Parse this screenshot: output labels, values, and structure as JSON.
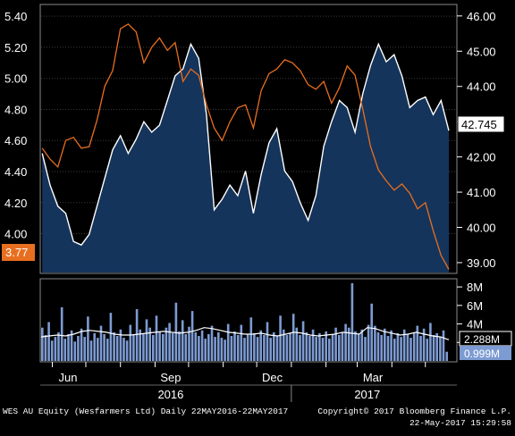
{
  "chart_data": [
    {
      "type": "line",
      "title": "",
      "x_start": "2016-05-22",
      "x_end": "2017-05-22",
      "ylim_left": [
        3.75,
        5.47
      ],
      "ylim_right": [
        38.72,
        46.3
      ],
      "left_ticks": [
        "5.40",
        "5.20",
        "5.00",
        "4.80",
        "4.60",
        "4.40",
        "4.20",
        "4.00"
      ],
      "right_ticks": [
        "46.00",
        "45.00",
        "44.00",
        "43.00",
        "42.00",
        "41.00",
        "40.00",
        "39.00"
      ],
      "series": [
        {
          "axis": "right",
          "color": "#ffffff",
          "fill": "#163760",
          "last_value": "42.745",
          "x": [
            "2016-05-23",
            "2016-05-30",
            "2016-06-06",
            "2016-06-13",
            "2016-06-20",
            "2016-06-27",
            "2016-07-04",
            "2016-07-11",
            "2016-07-18",
            "2016-07-25",
            "2016-08-01",
            "2016-08-08",
            "2016-08-15",
            "2016-08-22",
            "2016-08-29",
            "2016-09-05",
            "2016-09-12",
            "2016-09-19",
            "2016-09-26",
            "2016-10-03",
            "2016-10-10",
            "2016-10-17",
            "2016-10-24",
            "2016-10-31",
            "2016-11-07",
            "2016-11-14",
            "2016-11-21",
            "2016-11-28",
            "2016-12-05",
            "2016-12-12",
            "2016-12-19",
            "2016-12-26",
            "2017-01-02",
            "2017-01-09",
            "2017-01-16",
            "2017-01-23",
            "2017-01-30",
            "2017-02-06",
            "2017-02-13",
            "2017-02-20",
            "2017-02-27",
            "2017-03-06",
            "2017-03-13",
            "2017-03-20",
            "2017-03-27",
            "2017-04-03",
            "2017-04-10",
            "2017-04-17",
            "2017-04-24",
            "2017-05-01",
            "2017-05-08",
            "2017-05-15",
            "2017-05-22"
          ],
          "values": [
            42.1,
            41.2,
            40.6,
            40.4,
            39.6,
            39.5,
            39.8,
            40.6,
            41.4,
            42.2,
            42.6,
            42.1,
            42.5,
            43.0,
            42.7,
            42.9,
            43.6,
            44.3,
            44.5,
            45.2,
            44.8,
            43.2,
            40.5,
            40.8,
            41.2,
            40.9,
            41.6,
            40.4,
            41.5,
            42.4,
            42.8,
            41.6,
            41.3,
            40.7,
            40.2,
            40.9,
            42.3,
            43.0,
            43.6,
            43.4,
            42.7,
            43.8,
            44.6,
            45.2,
            44.7,
            44.9,
            44.3,
            43.4,
            43.6,
            43.7,
            43.2,
            43.6,
            42.745
          ]
        },
        {
          "axis": "left",
          "color": "#e86f1f",
          "last_value": "3.77",
          "x": [
            "2016-05-23",
            "2016-05-30",
            "2016-06-06",
            "2016-06-13",
            "2016-06-20",
            "2016-06-27",
            "2016-07-04",
            "2016-07-11",
            "2016-07-18",
            "2016-07-25",
            "2016-08-01",
            "2016-08-08",
            "2016-08-15",
            "2016-08-22",
            "2016-08-29",
            "2016-09-05",
            "2016-09-12",
            "2016-09-19",
            "2016-09-26",
            "2016-10-03",
            "2016-10-10",
            "2016-10-17",
            "2016-10-24",
            "2016-10-31",
            "2016-11-07",
            "2016-11-14",
            "2016-11-21",
            "2016-11-28",
            "2016-12-05",
            "2016-12-12",
            "2016-12-19",
            "2016-12-26",
            "2017-01-02",
            "2017-01-09",
            "2017-01-16",
            "2017-01-23",
            "2017-01-30",
            "2017-02-06",
            "2017-02-13",
            "2017-02-20",
            "2017-02-27",
            "2017-03-06",
            "2017-03-13",
            "2017-03-20",
            "2017-03-27",
            "2017-04-03",
            "2017-04-10",
            "2017-04-17",
            "2017-04-24",
            "2017-05-01",
            "2017-05-08",
            "2017-05-15",
            "2017-05-22"
          ],
          "values": [
            4.55,
            4.48,
            4.43,
            4.6,
            4.62,
            4.55,
            4.56,
            4.73,
            4.95,
            5.05,
            5.32,
            5.35,
            5.3,
            5.1,
            5.2,
            5.26,
            5.18,
            5.23,
            4.98,
            5.06,
            5.02,
            4.83,
            4.68,
            4.6,
            4.72,
            4.81,
            4.83,
            4.68,
            4.92,
            5.03,
            5.06,
            5.12,
            5.1,
            5.05,
            4.96,
            4.93,
            4.98,
            4.84,
            4.94,
            5.08,
            5.02,
            4.8,
            4.56,
            4.41,
            4.34,
            4.28,
            4.32,
            4.26,
            4.16,
            4.2,
            4.02,
            3.86,
            3.77
          ]
        }
      ]
    },
    {
      "type": "bar",
      "title": "",
      "ylim": [
        0,
        8.4
      ],
      "ticks": [
        "8M",
        "6M",
        "4M",
        "2M"
      ],
      "ma_value": "2.288M",
      "last_value": "0.999M",
      "bar_color": "#7d9bd3",
      "ma_color": "#ffffff",
      "values": [
        3.6,
        2.8,
        4.2,
        2.2,
        2.6,
        3.1,
        5.8,
        2.4,
        2.9,
        3.3,
        2.1,
        2.7,
        3.5,
        2.6,
        4.8,
        2.2,
        3.0,
        2.5,
        3.8,
        2.9,
        2.4,
        5.2,
        3.1,
        2.7,
        3.4,
        2.5,
        2.2,
        3.9,
        2.8,
        5.6,
        3.4,
        2.9,
        4.5,
        3.6,
        2.8,
        4.9,
        3.2,
        2.9,
        3.6,
        4.1,
        3.0,
        6.3,
        3.2,
        4.4,
        2.9,
        3.7,
        5.4,
        3.1,
        2.7,
        3.3,
        2.4,
        2.9,
        3.8,
        2.6,
        3.1,
        2.5,
        2.3,
        4.0,
        2.7,
        3.2,
        2.8,
        3.9,
        2.5,
        2.9,
        4.7,
        3.0,
        2.6,
        3.3,
        2.8,
        4.2,
        2.5,
        3.1,
        2.7,
        4.9,
        3.4,
        2.8,
        3.0,
        5.1,
        3.6,
        2.8,
        4.3,
        3.1,
        2.7,
        3.4,
        2.6,
        3.0,
        2.5,
        3.2,
        2.4,
        2.9,
        3.6,
        2.8,
        3.1,
        4.0,
        3.6,
        8.4,
        3.2,
        2.9,
        3.4,
        2.6,
        3.9,
        6.2,
        3.8,
        3.1,
        2.8,
        3.5,
        2.7,
        3.3,
        2.4,
        3.0,
        2.6,
        3.4,
        2.9,
        2.5,
        3.1,
        3.8,
        2.7,
        3.5,
        2.4,
        4.1,
        2.8,
        3.0,
        2.6,
        3.3,
        0.999
      ],
      "ma": [
        2.6,
        2.7,
        2.8,
        2.7,
        2.9,
        3.2,
        3.3,
        3.2,
        3.1,
        2.9,
        2.8,
        2.8,
        2.9,
        3.0,
        3.1,
        3.2,
        3.1,
        3.0,
        3.1,
        3.3,
        3.6,
        3.5,
        3.3,
        3.1,
        3.0,
        2.9,
        2.9,
        3.0,
        2.8,
        2.7,
        2.9,
        3.1,
        3.0,
        2.8,
        2.7,
        2.8,
        2.9,
        3.1,
        3.0,
        2.9,
        3.6,
        3.5,
        3.2,
        3.0,
        2.8,
        2.9,
        3.1,
        2.9,
        2.7,
        2.6,
        2.288
      ]
    }
  ],
  "x_axis": {
    "months": [
      "Jun",
      "Sep",
      "Dec",
      "Mar"
    ],
    "years": [
      "2016",
      "2017"
    ]
  },
  "footer": {
    "left": "WES AU Equity (Wesfarmers Ltd)  Daily 22MAY2016-22MAY2017",
    "right_line1": "Copyright© 2017 Bloomberg Finance L.P.",
    "right_line2": "22-May-2017 15:29:58"
  }
}
